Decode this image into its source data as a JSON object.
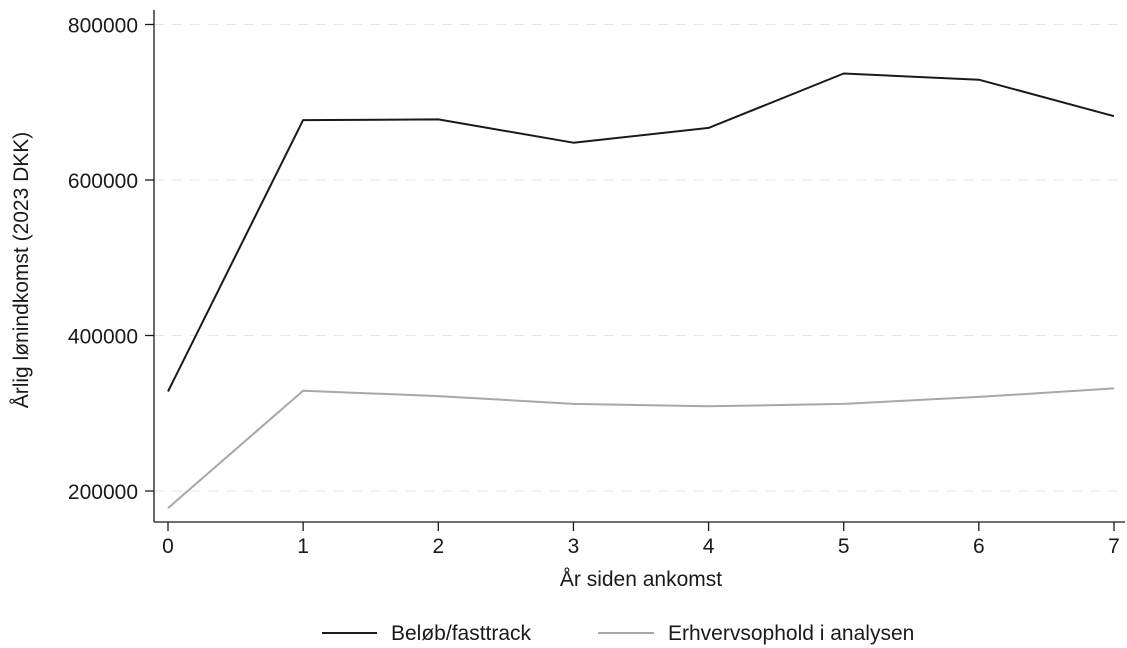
{
  "chart_data": {
    "type": "line",
    "title": "",
    "xlabel": "År siden ankomst",
    "ylabel": "Årlig lønindkomst (2023 DKK)",
    "x": [
      0,
      1,
      2,
      3,
      4,
      5,
      6,
      7
    ],
    "x_ticks": [
      "0",
      "1",
      "2",
      "3",
      "4",
      "5",
      "6",
      "7"
    ],
    "y_ticks": [
      "200000",
      "400000",
      "600000",
      "800000"
    ],
    "y_tick_values": [
      200000,
      400000,
      600000,
      800000
    ],
    "xlim": [
      0,
      7
    ],
    "ylim": [
      150000,
      820000
    ],
    "grid": "horizontal-dashed",
    "legend_position": "bottom",
    "series": [
      {
        "name": "Beløb/fasttrack",
        "color": "#1a1a1a",
        "values": [
          328000,
          677000,
          678000,
          648000,
          667000,
          737000,
          729000,
          682000
        ]
      },
      {
        "name": "Erhvervsophold i analysen",
        "color": "#a8a8a8",
        "values": [
          178000,
          329000,
          322000,
          312000,
          309000,
          312000,
          321000,
          332000
        ]
      }
    ]
  }
}
